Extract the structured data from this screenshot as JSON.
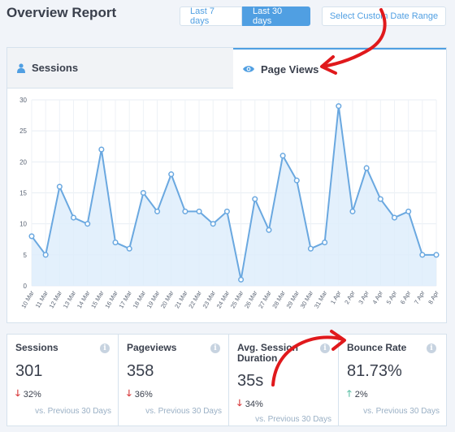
{
  "header": {
    "title": "Overview Report",
    "ranges": [
      "Last 7 days",
      "Last 30 days"
    ],
    "active_range": "Last 30 days",
    "custom_range_label": "Select Custom Date Range"
  },
  "tabs": [
    {
      "label": "Sessions",
      "icon": "person-icon",
      "active": false
    },
    {
      "label": "Page Views",
      "icon": "eye-icon",
      "active": true
    }
  ],
  "colors": {
    "accent": "#509fe2",
    "line": "#6aa8e0",
    "fill": "#dcecfb",
    "down": "#d73638",
    "up": "#5cc0a5"
  },
  "chart_data": {
    "type": "area",
    "x": [
      "10 Mar",
      "11 Mar",
      "12 Mar",
      "13 Mar",
      "14 Mar",
      "15 Mar",
      "16 Mar",
      "17 Mar",
      "18 Mar",
      "19 Mar",
      "20 Mar",
      "21 Mar",
      "22 Mar",
      "23 Mar",
      "24 Mar",
      "25 Mar",
      "26 Mar",
      "27 Mar",
      "28 Mar",
      "29 Mar",
      "30 Mar",
      "31 Mar",
      "1 Apr",
      "2 Apr",
      "3 Apr",
      "4 Apr",
      "5 Apr",
      "6 Apr",
      "7 Apr",
      "8 Apr"
    ],
    "series": [
      {
        "values": [
          8,
          5,
          16,
          11,
          10,
          22,
          7,
          6,
          15,
          12,
          18,
          12,
          12,
          10,
          12,
          1,
          14,
          9,
          21,
          17,
          6,
          7,
          29,
          12,
          19,
          14,
          11,
          12,
          5,
          5
        ]
      }
    ],
    "ylim": [
      0,
      30
    ],
    "yticks": [
      0,
      5,
      10,
      15,
      20,
      25,
      30
    ],
    "grid": true
  },
  "stats": [
    {
      "label": "Sessions",
      "value": "301",
      "change": "32%",
      "direction": "down",
      "compare": "vs. Previous 30 Days"
    },
    {
      "label": "Pageviews",
      "value": "358",
      "change": "36%",
      "direction": "down",
      "compare": "vs. Previous 30 Days"
    },
    {
      "label": "Avg. Session Duration",
      "value": "35s",
      "change": "34%",
      "direction": "down",
      "compare": "vs. Previous 30 Days"
    },
    {
      "label": "Bounce Rate",
      "value": "81.73%",
      "change": "2%",
      "direction": "up",
      "compare": "vs. Previous 30 Days"
    }
  ],
  "info_icon_glyph": "i",
  "down_arrow_glyph": "🡓",
  "up_arrow_glyph": "🡑"
}
